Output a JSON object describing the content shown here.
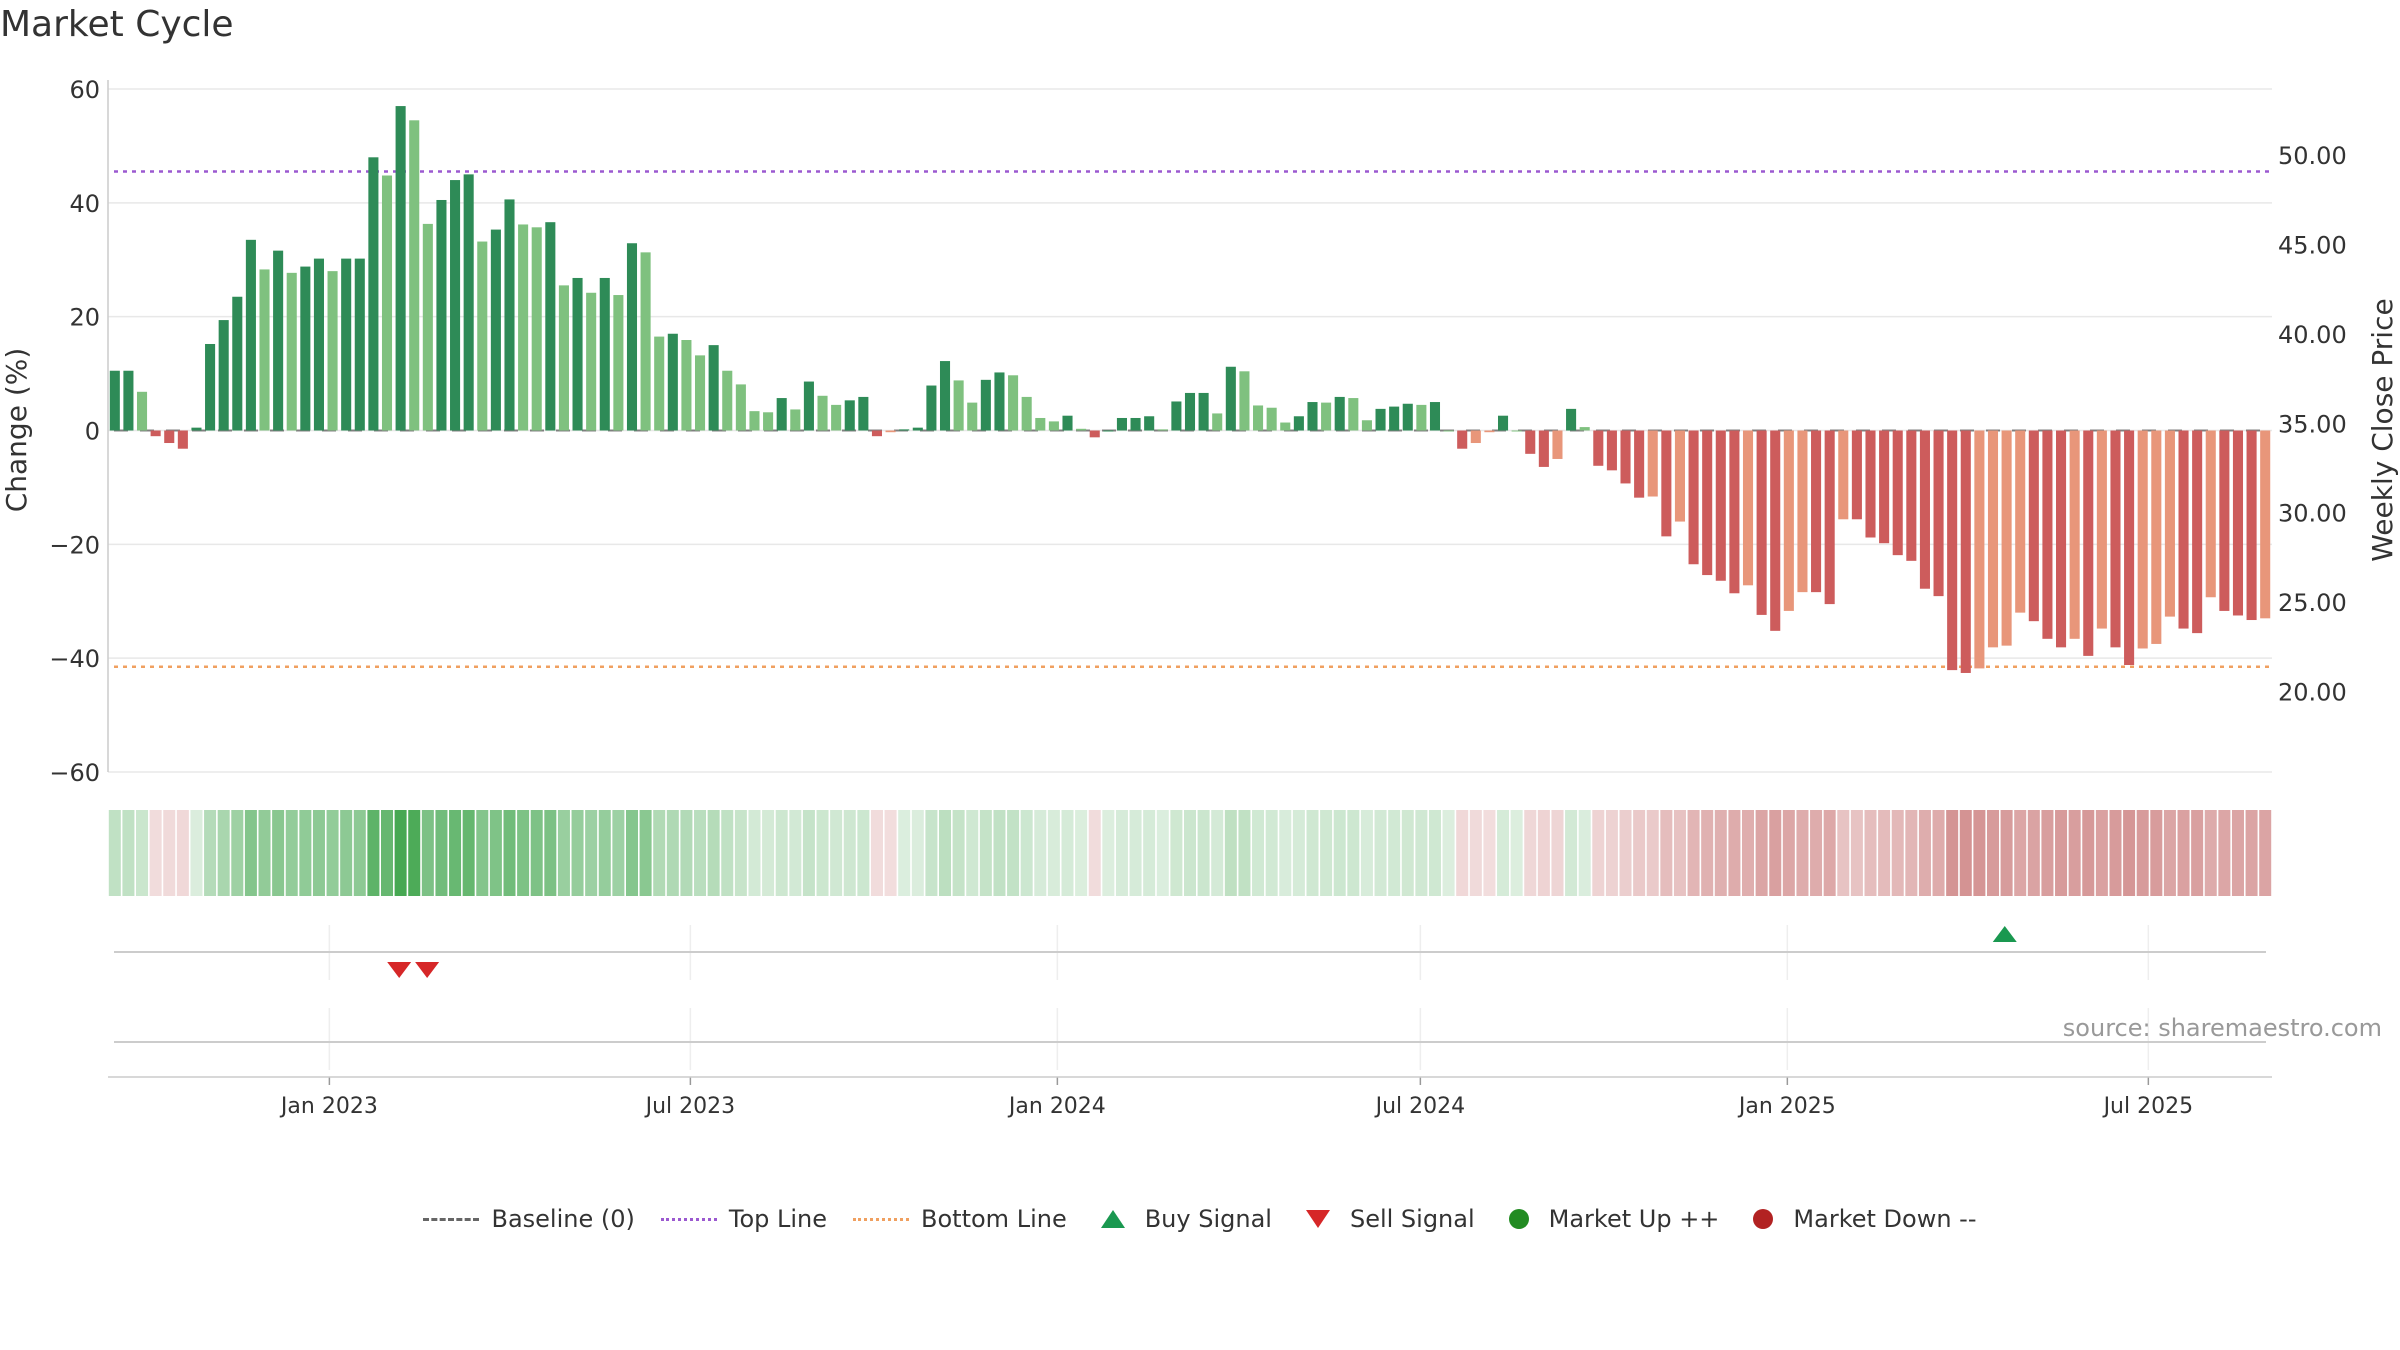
{
  "chart_data": {
    "type": "bar",
    "title": "Market Cycle",
    "source": "source: sharemaestro.com",
    "ylabel": "Change (%)",
    "y2label": "Weekly Close Price",
    "ylim": [
      -60,
      60
    ],
    "y2lim": [
      15.5,
      53.7
    ],
    "yticks": [
      "60",
      "40",
      "20",
      "0",
      "−20",
      "−40",
      "−60"
    ],
    "y2ticks": [
      "50.00",
      "45.00",
      "40.00",
      "35.00",
      "30.00",
      "25.00",
      "20.00"
    ],
    "x_start": "2022-09-12",
    "x_end": "2025-09-01",
    "week_step_days": 7,
    "xticks": [
      {
        "date": "2023-01-01",
        "label": "Jan 2023"
      },
      {
        "date": "2023-07-01",
        "label": "Jul 2023"
      },
      {
        "date": "2024-01-01",
        "label": "Jan 2024"
      },
      {
        "date": "2024-07-01",
        "label": "Jul 2024"
      },
      {
        "date": "2025-01-01",
        "label": "Jan 2025"
      },
      {
        "date": "2025-07-01",
        "label": "Jul 2025"
      }
    ],
    "top_line": 45.5,
    "bottom_line": -41.5,
    "values": [
      10.5,
      10.5,
      6.8,
      -1,
      -2.2,
      -3.2,
      0.5,
      15.2,
      19.4,
      23.5,
      33.5,
      28.3,
      31.6,
      27.7,
      28.8,
      30.2,
      28,
      30.2,
      30.2,
      48,
      44.8,
      57,
      54.5,
      36.3,
      40.5,
      44,
      45,
      33.2,
      35.3,
      40.6,
      36.2,
      35.7,
      36.6,
      25.5,
      26.8,
      24.2,
      26.8,
      23.8,
      32.9,
      31.3,
      16.5,
      17,
      15.9,
      13.2,
      15,
      10.5,
      8.1,
      3.4,
      3.2,
      5.7,
      3.7,
      8.6,
      6.1,
      4.5,
      5.3,
      5.9,
      -1,
      -0.3,
      0.2,
      0.5,
      7.9,
      12.2,
      8.8,
      4.9,
      8.9,
      10.2,
      9.7,
      5.9,
      2.2,
      1.6,
      2.6,
      0.3,
      -1.2,
      0,
      2.2,
      2.2,
      2.5,
      0.2,
      5.1,
      6.6,
      6.6,
      3,
      11.2,
      10.4,
      4.4,
      4,
      1.4,
      2.5,
      5,
      4.9,
      5.9,
      5.7,
      1.8,
      3.8,
      4.2,
      4.7,
      4.5,
      5,
      0,
      -3.2,
      -2.2,
      -0.3,
      2.6,
      0,
      -4.1,
      -6.4,
      -5,
      3.8,
      0.6,
      -6.2,
      -7,
      -9.3,
      -11.8,
      -11.6,
      -18.6,
      -16,
      -23.5,
      -25.4,
      -26.4,
      -28.6,
      -27.2,
      -32.4,
      -35.2,
      -31.7,
      -28.4,
      -28.4,
      -30.5,
      -15.6,
      -15.6,
      -18.8,
      -19.8,
      -21.9,
      -22.9,
      -27.8,
      -29.1,
      -42.1,
      -42.6,
      -41.8,
      -38.1,
      -37.8,
      -32,
      -33.5,
      -36.6,
      -38.1,
      -36.6,
      -39.6,
      -34.8,
      -38.1,
      -41.2,
      -38.3,
      -37.5,
      -32.7,
      -34.8,
      -35.6,
      -29.3,
      -31.7,
      -32.5,
      -33.3,
      -33
    ],
    "series": [
      {
        "name": "Baseline (0)",
        "style": "dashed",
        "color": "#666666"
      },
      {
        "name": "Top Line",
        "style": "dotted",
        "color": "#9b59d0"
      },
      {
        "name": "Bottom Line",
        "style": "dotted",
        "color": "#f0a060"
      }
    ],
    "signals": [
      {
        "type": "sell",
        "date": "2023-02-05"
      },
      {
        "type": "sell",
        "date": "2023-02-19"
      },
      {
        "type": "buy",
        "date": "2025-04-20"
      }
    ],
    "colors": {
      "strong_up": "#2e8b57",
      "weak_up": "#7fc17f",
      "weak_down": "#e8967a",
      "strong_down": "#cd5c5c",
      "buy": "#1a9850",
      "sell": "#d62728",
      "market_up": "#228b22",
      "market_down": "#b22222"
    }
  },
  "legend": {
    "baseline": "Baseline (0)",
    "top_line": "Top Line",
    "bottom_line": "Bottom Line",
    "buy": "Buy Signal",
    "sell": "Sell Signal",
    "market_up": "Market Up ++",
    "market_down": "Market Down --"
  }
}
